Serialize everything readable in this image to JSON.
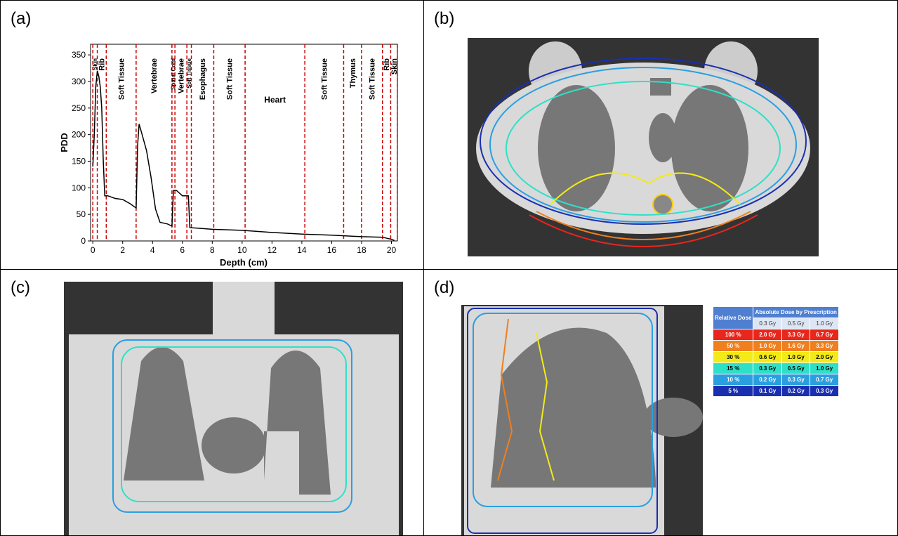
{
  "panel_labels": [
    "(a)",
    "(b)",
    "(c)",
    "(d)"
  ],
  "chart_data": {
    "type": "line",
    "x_label": "Depth (cm)",
    "y_label": "PDD",
    "x": [
      0,
      0.1,
      0.2,
      0.3,
      0.4,
      0.5,
      0.6,
      0.7,
      0.8,
      1.0,
      1.5,
      2.0,
      2.5,
      2.9,
      3.0,
      3.1,
      3.3,
      3.6,
      3.9,
      4.2,
      4.5,
      5.0,
      5.3,
      5.4,
      5.6,
      6.0,
      6.4,
      6.5,
      7.0,
      8.0,
      10.0,
      12.0,
      14.0,
      16.0,
      18.0,
      19.4,
      20.0,
      20.2
    ],
    "series": [
      {
        "color": "#000000",
        "values": [
          140,
          200,
          290,
          320,
          310,
          290,
          250,
          150,
          85,
          85,
          80,
          78,
          70,
          62,
          180,
          220,
          200,
          170,
          120,
          60,
          35,
          32,
          28,
          95,
          95,
          85,
          85,
          25,
          24,
          22,
          20,
          16,
          13,
          11,
          8,
          7,
          3,
          1
        ]
      }
    ],
    "xlim": [
      -0.15,
      20.4
    ],
    "ylim": [
      0,
      370
    ],
    "xticks": [
      0,
      2,
      4,
      6,
      8,
      10,
      12,
      14,
      16,
      18,
      20
    ],
    "yticks": [
      0,
      50,
      100,
      150,
      200,
      250,
      300,
      350
    ],
    "boundary_color": "#cc0000",
    "regions": [
      {
        "label": "Skin",
        "start": 0,
        "end": 0.3
      },
      {
        "label": "Rib",
        "start": 0.3,
        "end": 0.9
      },
      {
        "label": "Soft Tissue",
        "start": 0.9,
        "end": 2.9
      },
      {
        "label": "Vertebrae",
        "start": 2.9,
        "end": 5.3
      },
      {
        "label": "Spinal Cord",
        "start": 5.3,
        "end": 5.5
      },
      {
        "label": "Vertebrae",
        "start": 5.5,
        "end": 6.3
      },
      {
        "label": "Soft Tissue",
        "start": 6.3,
        "end": 6.6
      },
      {
        "label": "Esophagus",
        "start": 6.6,
        "end": 8.1
      },
      {
        "label": "Soft Tissue",
        "start": 8.1,
        "end": 10.2
      },
      {
        "label": "Heart",
        "start": 10.2,
        "end": 14.2
      },
      {
        "label": "Soft Tissue",
        "start": 14.2,
        "end": 16.8
      },
      {
        "label": "Thymus",
        "start": 16.8,
        "end": 18.0
      },
      {
        "label": "Soft Tissue",
        "start": 18.0,
        "end": 19.4
      },
      {
        "label": "Rib",
        "start": 19.4,
        "end": 19.95
      },
      {
        "label": "Skin",
        "start": 19.95,
        "end": 20.4
      }
    ]
  },
  "dose_table": {
    "relative_header": "Relative Dose",
    "absolute_header": "Absolute Dose by Prescription",
    "prescriptions": [
      "0.3 Gy",
      "0.5 Gy",
      "1.0 Gy"
    ],
    "rows": [
      {
        "color": "#e8261c",
        "cells": [
          "100 %",
          "2.0 Gy",
          "3.3 Gy",
          "6.7 Gy"
        ]
      },
      {
        "color": "#f07f1e",
        "cells": [
          "50 %",
          "1.0 Gy",
          "1.6 Gy",
          "3.3 Gy"
        ]
      },
      {
        "color": "#f3ea1a",
        "cells": [
          "30 %",
          "0.6 Gy",
          "1.0 Gy",
          "2.0 Gy"
        ]
      },
      {
        "color": "#2fe0c8",
        "cells": [
          "15 %",
          "0.3 Gy",
          "0.5 Gy",
          "1.0 Gy"
        ]
      },
      {
        "color": "#2a9fe0",
        "cells": [
          "10 %",
          "0.2 Gy",
          "0.3 Gy",
          "0.7 Gy"
        ]
      },
      {
        "color": "#1a2fb0",
        "cells": [
          "5 %",
          "0.1 Gy",
          "0.2 Gy",
          "0.3 Gy"
        ]
      }
    ]
  }
}
